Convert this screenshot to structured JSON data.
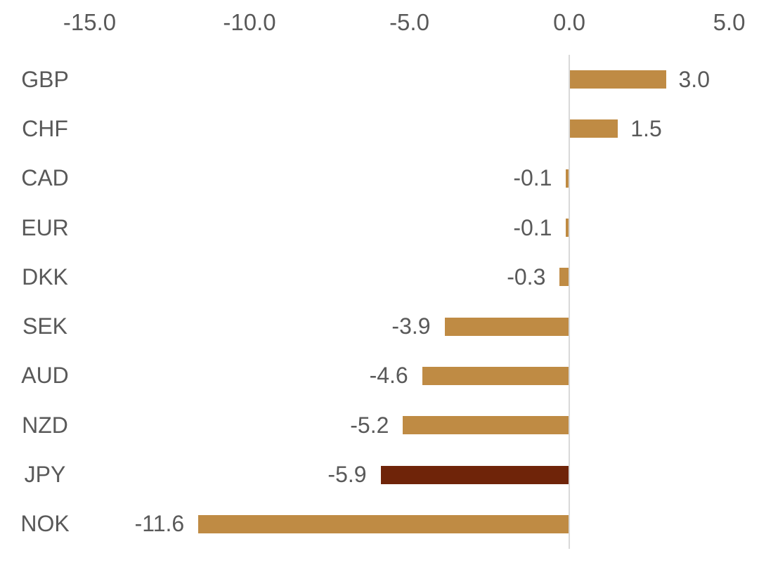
{
  "chart_data": {
    "type": "bar",
    "orientation": "horizontal",
    "title": "",
    "categories": [
      "GBP",
      "CHF",
      "CAD",
      "EUR",
      "DKK",
      "SEK",
      "AUD",
      "NZD",
      "JPY",
      "NOK"
    ],
    "values": [
      3.0,
      1.5,
      -0.1,
      -0.1,
      -0.3,
      -3.9,
      -4.6,
      -5.2,
      -5.9,
      -11.6
    ],
    "value_labels": [
      "3.0",
      "1.5",
      "-0.1",
      "-0.1",
      "-0.3",
      "-3.9",
      "-4.6",
      "-5.2",
      "-5.9",
      "-11.6"
    ],
    "bar_colors": [
      "#BF8B44",
      "#BF8B44",
      "#BF8B44",
      "#BF8B44",
      "#BF8B44",
      "#BF8B44",
      "#BF8B44",
      "#BF8B44",
      "#6F2409",
      "#BF8B44"
    ],
    "x_axis": {
      "position": "top",
      "ticks": [
        -15,
        -10,
        -5,
        0,
        5
      ],
      "tick_labels": [
        "-15.0",
        "-10.0",
        "-5.0",
        "0.0",
        "5.0"
      ],
      "range": [
        -16.3,
        5.9
      ]
    },
    "colors": {
      "bar_default": "#BF8B44",
      "bar_highlight": "#6F2409",
      "text": "#595959",
      "axis_line": "#D9D9D9",
      "background": "#FFFFFF"
    },
    "grid": false,
    "legend": false,
    "data_labels": "outside-end"
  }
}
